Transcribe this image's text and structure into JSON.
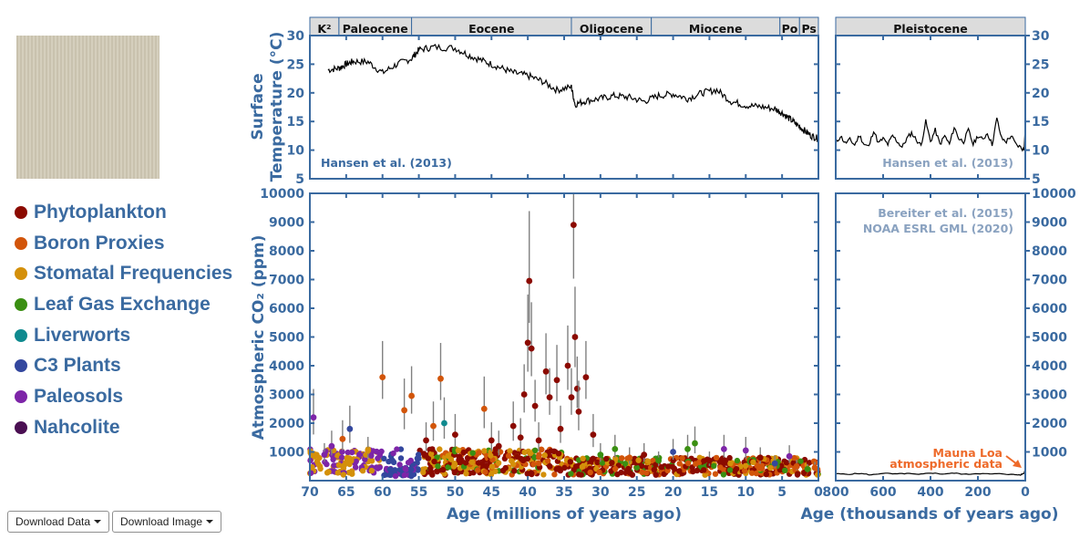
{
  "legend": {
    "items": [
      {
        "label": "Phytoplankton",
        "color": "#8b0a00"
      },
      {
        "label": "Boron Proxies",
        "color": "#d2550a"
      },
      {
        "label": "Stomatal Frequencies",
        "color": "#d4900a"
      },
      {
        "label": "Leaf Gas Exchange",
        "color": "#3a8f12"
      },
      {
        "label": "Liverworts",
        "color": "#0f8a8f"
      },
      {
        "label": "C3 Plants",
        "color": "#33479e"
      },
      {
        "label": "Paleosols",
        "color": "#7d25a8"
      },
      {
        "label": "Nahcolite",
        "color": "#4a0f52"
      }
    ]
  },
  "buttons": {
    "download_data": "Download Data",
    "download_image": "Download Image"
  },
  "chart_data": {
    "type": "scatter",
    "colors": {
      "axis": "#3a6aa0",
      "accent": "#ee6a2a",
      "credit": "#8aa2c0",
      "epoch_fill": "#dcdcdc"
    },
    "epochs_left": [
      {
        "label": "K²",
        "from": 70,
        "to": 66
      },
      {
        "label": "Paleocene",
        "from": 66,
        "to": 56
      },
      {
        "label": "Eocene",
        "from": 56,
        "to": 34
      },
      {
        "label": "Oligocene",
        "from": 34,
        "to": 23
      },
      {
        "label": "Miocene",
        "from": 23,
        "to": 5.3
      },
      {
        "label": "Po",
        "from": 5.3,
        "to": 2.6
      },
      {
        "label": "Ps",
        "from": 2.6,
        "to": 0
      }
    ],
    "epochs_right": [
      {
        "label": "Pleistocene",
        "from": 800,
        "to": 0
      }
    ],
    "temperature": {
      "ylabel_line1": "Surface",
      "ylabel_line2": "Temperature (°C)",
      "ylim": [
        5,
        30
      ],
      "yticks": [
        "5",
        "10",
        "15",
        "20",
        "25",
        "30"
      ],
      "credit_left": "Hansen et al. (2013)",
      "credit_right": "Hansen et al. (2013)",
      "series_left": {
        "x": [
          67.5,
          66,
          65,
          64,
          62,
          60,
          58,
          56,
          55,
          53,
          50,
          48,
          46,
          44,
          42,
          40,
          38,
          36,
          34,
          33.5,
          32,
          30,
          28,
          26,
          24,
          22,
          20,
          18,
          16,
          14,
          12,
          10,
          8,
          6,
          5,
          4,
          3,
          2,
          1,
          0
        ],
        "y": [
          24.0,
          24.3,
          25.0,
          25.5,
          25.4,
          23.5,
          25.0,
          26.0,
          27.5,
          28.0,
          27.8,
          26.5,
          25.5,
          24.5,
          23.5,
          23.0,
          22.0,
          20.5,
          21.0,
          18.0,
          18.6,
          19.0,
          19.5,
          19.2,
          18.5,
          19.5,
          19.8,
          19.0,
          20.0,
          20.5,
          18.5,
          17.8,
          17.6,
          17.2,
          16.5,
          15.5,
          14.5,
          13.5,
          12.5,
          12.0
        ]
      },
      "series_right": {
        "x": [
          800,
          780,
          760,
          740,
          720,
          700,
          680,
          660,
          640,
          620,
          600,
          580,
          560,
          540,
          520,
          500,
          480,
          460,
          440,
          420,
          400,
          380,
          360,
          340,
          320,
          300,
          280,
          260,
          240,
          220,
          200,
          180,
          160,
          140,
          120,
          100,
          80,
          60,
          40,
          20,
          5,
          0
        ],
        "y": [
          11.0,
          12.5,
          11.2,
          11.8,
          10.9,
          12.6,
          11.0,
          10.6,
          13.5,
          11.2,
          12.0,
          11.0,
          12.5,
          11.5,
          10.5,
          12.0,
          13.0,
          11.8,
          10.8,
          15.0,
          11.5,
          13.5,
          11.0,
          12.5,
          11.0,
          14.0,
          12.0,
          11.5,
          13.5,
          11.0,
          12.5,
          11.8,
          13.0,
          11.0,
          15.5,
          12.0,
          11.5,
          12.5,
          11.0,
          10.5,
          10.0,
          14.5
        ]
      }
    },
    "co2": {
      "ylabel": "Atmospheric CO₂ (ppm)",
      "ylim": [
        0,
        10000
      ],
      "yticks": [
        "1000",
        "2000",
        "3000",
        "4000",
        "5000",
        "6000",
        "7000",
        "8000",
        "9000",
        "10000"
      ],
      "credit_right_1": "Bereiter et al. (2015)",
      "credit_right_2": "NOAA ESRL GML (2020)",
      "annotation_1": "Mauna Loa",
      "annotation_2": "atmospheric data",
      "series_right": {
        "x": [
          800,
          750,
          700,
          650,
          600,
          550,
          500,
          450,
          400,
          350,
          300,
          250,
          200,
          150,
          100,
          50,
          20,
          5,
          0
        ],
        "y": [
          240,
          220,
          250,
          200,
          260,
          230,
          250,
          210,
          270,
          230,
          260,
          220,
          250,
          230,
          240,
          210,
          200,
          260,
          410
        ]
      },
      "points": [
        {
          "x": 64.5,
          "y": 1800,
          "c": 5
        },
        {
          "x": 65.5,
          "y": 1450,
          "c": 1
        },
        {
          "x": 67,
          "y": 1200,
          "c": 6
        },
        {
          "x": 68,
          "y": 900,
          "c": 6
        },
        {
          "x": 69.5,
          "y": 2200,
          "c": 6
        },
        {
          "x": 62,
          "y": 1050,
          "c": 2
        },
        {
          "x": 60,
          "y": 3600,
          "c": 1
        },
        {
          "x": 57,
          "y": 2450,
          "c": 1
        },
        {
          "x": 56,
          "y": 2950,
          "c": 1
        },
        {
          "x": 54,
          "y": 1400,
          "c": 0
        },
        {
          "x": 53,
          "y": 1900,
          "c": 1
        },
        {
          "x": 52,
          "y": 3550,
          "c": 1
        },
        {
          "x": 51.5,
          "y": 2000,
          "c": 4
        },
        {
          "x": 50,
          "y": 1600,
          "c": 0
        },
        {
          "x": 46,
          "y": 2500,
          "c": 1
        },
        {
          "x": 45,
          "y": 1400,
          "c": 0
        },
        {
          "x": 44,
          "y": 1200,
          "c": 0
        },
        {
          "x": 42,
          "y": 1900,
          "c": 0
        },
        {
          "x": 41,
          "y": 1500,
          "c": 0
        },
        {
          "x": 40.5,
          "y": 3000,
          "c": 0
        },
        {
          "x": 40,
          "y": 4800,
          "c": 0
        },
        {
          "x": 39.8,
          "y": 6950,
          "c": 0
        },
        {
          "x": 39.5,
          "y": 4600,
          "c": 0
        },
        {
          "x": 39,
          "y": 2600,
          "c": 0
        },
        {
          "x": 38.5,
          "y": 1400,
          "c": 0
        },
        {
          "x": 37.5,
          "y": 3800,
          "c": 0
        },
        {
          "x": 37,
          "y": 2900,
          "c": 0
        },
        {
          "x": 36,
          "y": 3500,
          "c": 0
        },
        {
          "x": 35.5,
          "y": 1800,
          "c": 0
        },
        {
          "x": 34.5,
          "y": 4000,
          "c": 0
        },
        {
          "x": 34,
          "y": 2900,
          "c": 0
        },
        {
          "x": 33.7,
          "y": 8900,
          "c": 0
        },
        {
          "x": 33.5,
          "y": 5000,
          "c": 0
        },
        {
          "x": 33.2,
          "y": 3200,
          "c": 0
        },
        {
          "x": 33,
          "y": 2400,
          "c": 0
        },
        {
          "x": 32,
          "y": 3600,
          "c": 0
        },
        {
          "x": 31,
          "y": 1600,
          "c": 0
        },
        {
          "x": 30,
          "y": 900,
          "c": 3
        },
        {
          "x": 28,
          "y": 1100,
          "c": 3
        },
        {
          "x": 26,
          "y": 800,
          "c": 1
        },
        {
          "x": 24,
          "y": 900,
          "c": 0
        },
        {
          "x": 22,
          "y": 700,
          "c": 3
        },
        {
          "x": 20,
          "y": 1000,
          "c": 5
        },
        {
          "x": 18,
          "y": 1100,
          "c": 3
        },
        {
          "x": 17,
          "y": 1300,
          "c": 3
        },
        {
          "x": 15,
          "y": 700,
          "c": 0
        },
        {
          "x": 13,
          "y": 1100,
          "c": 6
        },
        {
          "x": 10,
          "y": 1050,
          "c": 6
        },
        {
          "x": 8,
          "y": 800,
          "c": 0
        },
        {
          "x": 6,
          "y": 600,
          "c": 5
        },
        {
          "x": 4,
          "y": 850,
          "c": 6
        },
        {
          "x": 3,
          "y": 500,
          "c": 1
        },
        {
          "x": 1.5,
          "y": 400,
          "c": 3
        },
        {
          "x": 0.5,
          "y": 450,
          "c": 1
        }
      ]
    },
    "x_left": {
      "label": "Age (millions of years ago)",
      "xlim": [
        70,
        0
      ],
      "ticks": [
        "70",
        "65",
        "60",
        "55",
        "50",
        "45",
        "40",
        "35",
        "30",
        "25",
        "20",
        "15",
        "10",
        "5",
        "0"
      ]
    },
    "x_right": {
      "label": "Age (thousands of years ago)",
      "xlim": [
        800,
        0
      ],
      "ticks": [
        "800",
        "600",
        "400",
        "200",
        "0"
      ]
    }
  }
}
